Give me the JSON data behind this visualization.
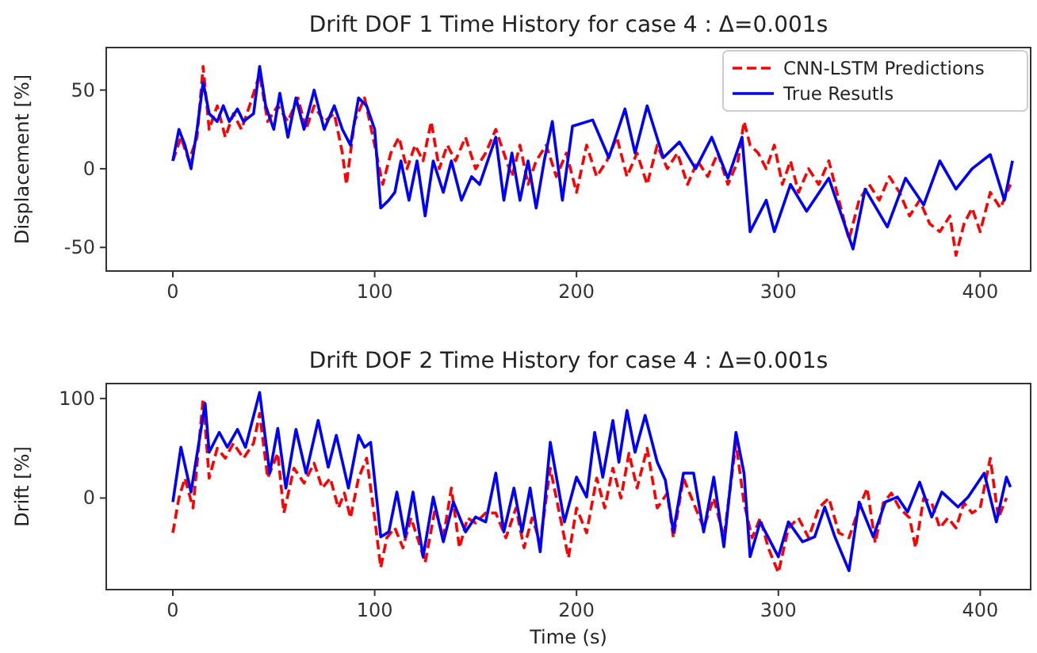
{
  "chart_data": [
    {
      "type": "line",
      "title": "Drift DOF 1 Time History for case 4 : Δ=0.001s",
      "ylabel": "Displacement [%]",
      "xlim": [
        -33,
        425
      ],
      "ylim": [
        -65,
        77
      ],
      "xticks": [
        0,
        100,
        200,
        300,
        400
      ],
      "yticks": [
        50,
        0,
        -50
      ],
      "legend": "top right",
      "grid": false,
      "series": [
        {
          "name": "CNN-LSTM  Predictions",
          "color": "#ff0000",
          "line_style": "dashed",
          "x": [
            0,
            4,
            8,
            12,
            15,
            18,
            22,
            26,
            30,
            34,
            38,
            43,
            47,
            52,
            57,
            62,
            66,
            70,
            75,
            80,
            84,
            86,
            90,
            95,
            100,
            104,
            108,
            112,
            116,
            120,
            124,
            128,
            132,
            136,
            140,
            145,
            150,
            155,
            160,
            164,
            168,
            172,
            176,
            180,
            185,
            190,
            195,
            200,
            205,
            210,
            215,
            220,
            225,
            230,
            235,
            240,
            245,
            250,
            255,
            260,
            265,
            270,
            275,
            280,
            283,
            286,
            290,
            294,
            298,
            302,
            306,
            310,
            315,
            320,
            325,
            330,
            335,
            340,
            345,
            350,
            355,
            360,
            365,
            370,
            375,
            380,
            385,
            388,
            392,
            396,
            400,
            405,
            410,
            415
          ],
          "values": [
            5,
            20,
            5,
            20,
            65,
            25,
            40,
            20,
            35,
            25,
            40,
            60,
            30,
            40,
            30,
            45,
            25,
            40,
            30,
            35,
            10,
            -10,
            30,
            45,
            15,
            -10,
            10,
            20,
            0,
            15,
            5,
            30,
            0,
            15,
            5,
            20,
            0,
            10,
            25,
            10,
            -5,
            15,
            -10,
            5,
            15,
            -5,
            10,
            -15,
            15,
            -5,
            5,
            20,
            -5,
            10,
            -10,
            15,
            0,
            10,
            -10,
            5,
            -5,
            10,
            -10,
            5,
            30,
            15,
            10,
            0,
            15,
            -10,
            5,
            -15,
            0,
            -10,
            5,
            -20,
            -45,
            -20,
            -10,
            -20,
            -5,
            -15,
            -30,
            -20,
            -35,
            -40,
            -30,
            -55,
            -35,
            -25,
            -40,
            -15,
            -25,
            -10
          ]
        },
        {
          "name": "True Resutls",
          "color": "#0000ff",
          "line_style": "solid",
          "x": [
            0,
            3,
            6,
            9,
            12,
            15,
            18,
            22,
            25,
            28,
            32,
            35,
            40,
            43,
            46,
            50,
            53,
            57,
            61,
            65,
            70,
            75,
            80,
            84,
            88,
            92,
            96,
            100,
            103,
            107,
            110,
            113,
            117,
            121,
            125,
            129,
            134,
            138,
            143,
            148,
            152,
            156,
            160,
            164,
            168,
            172,
            176,
            180,
            184,
            188,
            193,
            198,
            208,
            216,
            224,
            229,
            235,
            243,
            251,
            259,
            267,
            275,
            282,
            286,
            294,
            298,
            306,
            314,
            325,
            337,
            343,
            354,
            363,
            372,
            380,
            388,
            396,
            405,
            412,
            416
          ],
          "values": [
            5,
            25,
            15,
            0,
            25,
            55,
            35,
            30,
            40,
            30,
            38,
            30,
            35,
            65,
            40,
            25,
            48,
            20,
            45,
            25,
            50,
            25,
            40,
            25,
            15,
            45,
            40,
            25,
            -25,
            -20,
            -15,
            5,
            -20,
            5,
            -30,
            5,
            -15,
            5,
            -20,
            -5,
            -10,
            5,
            20,
            -20,
            10,
            -20,
            5,
            -25,
            5,
            30,
            -20,
            27,
            31,
            7,
            38,
            10,
            40,
            7,
            17,
            0,
            20,
            -6,
            20,
            -40,
            -20,
            -40,
            -10,
            -27,
            -6,
            -51,
            -13,
            -37,
            -6,
            -23,
            5,
            -13,
            0,
            9,
            -20,
            5
          ]
        }
      ]
    },
    {
      "type": "line",
      "title": "Drift DOF 2 Time History for case 4 : Δ=0.001s",
      "xlabel": "Time (s)",
      "ylabel": "Drift [%]",
      "xlim": [
        -33,
        425
      ],
      "ylim": [
        -92,
        115
      ],
      "xticks": [
        0,
        100,
        200,
        300,
        400
      ],
      "yticks": [
        100,
        0
      ],
      "grid": false,
      "series": [
        {
          "color": "#ff0000",
          "line_style": "dashed",
          "x": [
            0,
            3,
            6,
            10,
            15,
            18,
            22,
            26,
            30,
            35,
            40,
            43,
            47,
            52,
            55,
            60,
            65,
            70,
            74,
            78,
            82,
            85,
            88,
            92,
            96,
            100,
            103,
            106,
            110,
            114,
            118,
            122,
            125,
            130,
            134,
            138,
            142,
            146,
            150,
            155,
            160,
            165,
            170,
            174,
            178,
            182,
            187,
            192,
            196,
            200,
            205,
            210,
            214,
            218,
            222,
            226,
            230,
            235,
            240,
            245,
            248,
            253,
            258,
            263,
            268,
            273,
            279,
            283,
            287,
            291,
            295,
            300,
            305,
            310,
            315,
            320,
            325,
            330,
            335,
            340,
            344,
            348,
            352,
            356,
            360,
            365,
            368,
            372,
            376,
            380,
            384,
            388,
            392,
            396,
            400,
            405,
            409,
            413
          ],
          "values": [
            -35,
            0,
            20,
            -10,
            100,
            20,
            50,
            40,
            55,
            40,
            55,
            85,
            20,
            45,
            -15,
            30,
            15,
            35,
            10,
            20,
            -10,
            5,
            -20,
            20,
            40,
            -20,
            -70,
            -40,
            -30,
            -50,
            -20,
            -45,
            -65,
            -10,
            -40,
            10,
            -50,
            -20,
            -25,
            -15,
            -15,
            -40,
            -10,
            -50,
            -20,
            -45,
            30,
            -20,
            -60,
            -10,
            -35,
            20,
            -10,
            30,
            0,
            45,
            10,
            50,
            -10,
            5,
            -40,
            20,
            -5,
            -30,
            0,
            -40,
            55,
            -5,
            -40,
            -20,
            -50,
            -75,
            -30,
            -20,
            -40,
            -10,
            0,
            -35,
            -40,
            -10,
            10,
            -45,
            -5,
            5,
            -10,
            -20,
            -50,
            0,
            -5,
            -30,
            -20,
            -30,
            -5,
            -15,
            -10,
            40,
            -20,
            0
          ]
        },
        {
          "color": "#0000ff",
          "line_style": "solid",
          "x": [
            0,
            4,
            9,
            16,
            18,
            23,
            27,
            32,
            36,
            43,
            48,
            52,
            56,
            61,
            66,
            72,
            77,
            81,
            87,
            92,
            95,
            98,
            103,
            107,
            111,
            115,
            119,
            124,
            129,
            134,
            139,
            145,
            150,
            155,
            160,
            164,
            169,
            173,
            177,
            182,
            187,
            194,
            200,
            205,
            209,
            213,
            218,
            221,
            225,
            229,
            234,
            240,
            244,
            248,
            253,
            258,
            263,
            268,
            273,
            279,
            283,
            286,
            291,
            300,
            305,
            312,
            318,
            323,
            328,
            335,
            340,
            347,
            353,
            359,
            364,
            370,
            376,
            381,
            389,
            394,
            402,
            408,
            413,
            415
          ],
          "values": [
            -4,
            51,
            6,
            95,
            46,
            66,
            51,
            69,
            51,
            106,
            25,
            70,
            10,
            69,
            25,
            78,
            31,
            63,
            10,
            63,
            51,
            56,
            -39,
            -34,
            6,
            -39,
            6,
            -59,
            1,
            -44,
            -4,
            -34,
            -19,
            -24,
            25,
            -34,
            10,
            -34,
            10,
            -54,
            56,
            -24,
            21,
            1,
            66,
            21,
            78,
            36,
            88,
            46,
            83,
            36,
            18,
            -34,
            25,
            25,
            -34,
            21,
            -49,
            66,
            25,
            -59,
            -24,
            -59,
            -24,
            -44,
            -39,
            -9,
            -39,
            -73,
            -4,
            -39,
            -4,
            1,
            -14,
            16,
            -19,
            6,
            -9,
            1,
            25,
            -24,
            21,
            11
          ]
        }
      ]
    }
  ]
}
